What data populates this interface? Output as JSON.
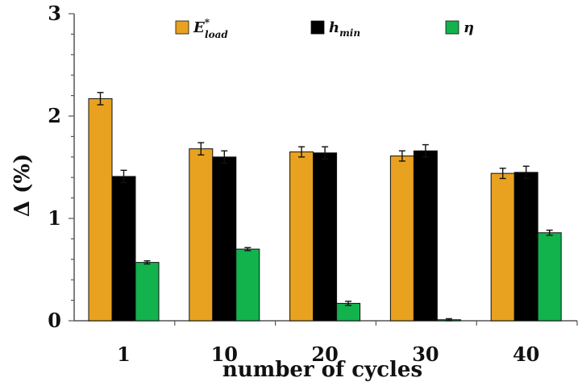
{
  "chart_data": {
    "type": "bar",
    "categories": [
      "1",
      "10",
      "20",
      "30",
      "40"
    ],
    "series": [
      {
        "name": "E*load",
        "name_base": "E",
        "name_sup": "*",
        "name_sub": "load",
        "color": "#E8A21F",
        "values": [
          2.17,
          1.68,
          1.65,
          1.61,
          1.44
        ],
        "errors": [
          0.06,
          0.06,
          0.05,
          0.05,
          0.05
        ]
      },
      {
        "name": "hmin",
        "name_base": "h",
        "name_sup": "",
        "name_sub": "min",
        "color": "#000000",
        "values": [
          1.41,
          1.6,
          1.64,
          1.66,
          1.45
        ],
        "errors": [
          0.06,
          0.06,
          0.06,
          0.06,
          0.06
        ]
      },
      {
        "name": "η",
        "name_base": "η",
        "name_sup": "",
        "name_sub": "",
        "color": "#12B24D",
        "values": [
          0.57,
          0.7,
          0.17,
          0.01,
          0.86
        ],
        "errors": [
          0.015,
          0.015,
          0.02,
          0.01,
          0.025
        ]
      }
    ],
    "xlabel": "number of cycles",
    "ylabel": "Δ (%)",
    "ylim": [
      0,
      3
    ],
    "yticks": [
      "0",
      "1",
      "2",
      "3"
    ],
    "grid": false,
    "legend_position": "top"
  }
}
